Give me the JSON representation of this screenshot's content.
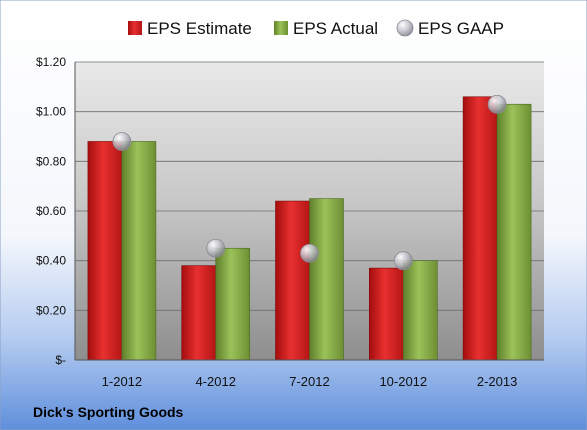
{
  "caption": "Dick's Sporting Goods",
  "chart_data": {
    "type": "bar",
    "title": "",
    "xlabel": "",
    "ylabel": "",
    "categories": [
      "1-2012",
      "4-2012",
      "7-2012",
      "10-2012",
      "2-2013"
    ],
    "series": [
      {
        "name": "EPS Estimate",
        "kind": "bar",
        "color": "#e02020",
        "values": [
          0.88,
          0.38,
          0.64,
          0.37,
          1.06
        ]
      },
      {
        "name": "EPS Actual",
        "kind": "bar",
        "color": "#8cb04a",
        "values": [
          0.88,
          0.45,
          0.65,
          0.4,
          1.03
        ]
      },
      {
        "name": "EPS GAAP",
        "kind": "marker",
        "color": "#b8b8c0",
        "values": [
          0.88,
          0.45,
          0.43,
          0.4,
          1.03
        ]
      }
    ],
    "ylim": [
      0,
      1.2
    ],
    "yticks": [
      0,
      0.2,
      0.4,
      0.6,
      0.8,
      1.0,
      1.2
    ],
    "ytick_labels": [
      "$-",
      "$0.20",
      "$0.40",
      "$0.60",
      "$0.80",
      "$1.00",
      "$1.20"
    ],
    "grid": true,
    "legend": "top"
  }
}
